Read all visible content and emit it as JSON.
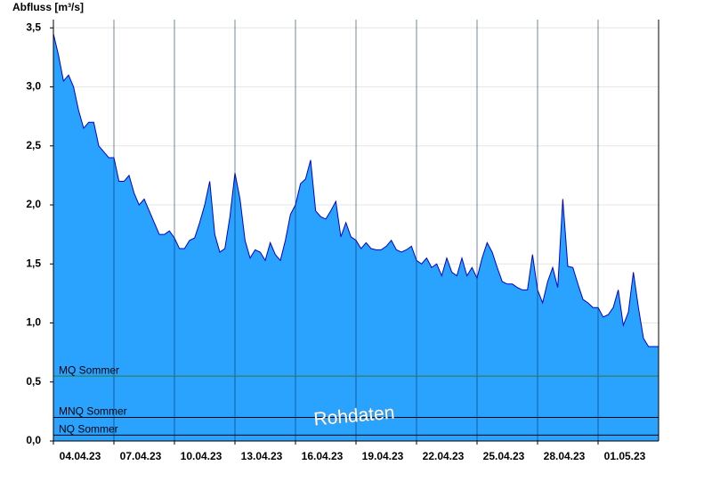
{
  "chart_data": {
    "type": "area",
    "y_label": "Abfluss [m³/s]",
    "annotation": "Rohdaten",
    "color": "#29a3ff",
    "line_color": "#0000cc",
    "grid": true,
    "ylim": [
      0,
      3.57
    ],
    "yticks": [
      {
        "value": 0,
        "label": "0,0"
      },
      {
        "value": 0.5,
        "label": "0,5"
      },
      {
        "value": 1,
        "label": "1,0"
      },
      {
        "value": 1.5,
        "label": "1,5"
      },
      {
        "value": 2,
        "label": "2,0"
      },
      {
        "value": 2.5,
        "label": "2,5"
      },
      {
        "value": 3,
        "label": "3,0"
      },
      {
        "value": 3.5,
        "label": "3,5"
      }
    ],
    "categories": [
      "04.04.23",
      null,
      null,
      null,
      null,
      null,
      null,
      null,
      null,
      null,
      null,
      null,
      "07.04.23",
      null,
      null,
      null,
      null,
      null,
      null,
      null,
      null,
      null,
      null,
      null,
      "10.04.23",
      null,
      null,
      null,
      null,
      null,
      null,
      null,
      null,
      null,
      null,
      null,
      "13.04.23",
      null,
      null,
      null,
      null,
      null,
      null,
      null,
      null,
      null,
      null,
      null,
      "16.04.23",
      null,
      null,
      null,
      null,
      null,
      null,
      null,
      null,
      null,
      null,
      null,
      "19.04.23",
      null,
      null,
      null,
      null,
      null,
      null,
      null,
      null,
      null,
      null,
      null,
      "22.04.23",
      null,
      null,
      null,
      null,
      null,
      null,
      null,
      null,
      null,
      null,
      null,
      "25.04.23",
      null,
      null,
      null,
      null,
      null,
      null,
      null,
      null,
      null,
      null,
      null,
      "28.04.23",
      null,
      null,
      null,
      null,
      null,
      null,
      null,
      null,
      null,
      null,
      null,
      "01.05.23",
      null,
      null,
      null,
      null,
      null,
      null,
      null,
      null,
      null,
      null,
      null,
      null
    ],
    "values": [
      3.45,
      3.27,
      3.05,
      3.1,
      3.0,
      2.8,
      2.65,
      2.7,
      2.7,
      2.5,
      2.45,
      2.4,
      2.4,
      2.2,
      2.2,
      2.25,
      2.1,
      2.0,
      2.05,
      1.95,
      1.85,
      1.75,
      1.75,
      1.78,
      1.72,
      1.63,
      1.63,
      1.7,
      1.72,
      1.85,
      2.0,
      2.2,
      1.75,
      1.6,
      1.63,
      1.9,
      2.27,
      2.05,
      1.7,
      1.55,
      1.62,
      1.6,
      1.53,
      1.68,
      1.58,
      1.53,
      1.7,
      1.92,
      2.0,
      2.18,
      2.22,
      2.38,
      1.95,
      1.9,
      1.88,
      1.95,
      2.03,
      1.73,
      1.85,
      1.73,
      1.7,
      1.63,
      1.68,
      1.63,
      1.62,
      1.62,
      1.65,
      1.7,
      1.62,
      1.6,
      1.62,
      1.65,
      1.53,
      1.5,
      1.55,
      1.47,
      1.5,
      1.4,
      1.55,
      1.43,
      1.4,
      1.55,
      1.4,
      1.47,
      1.38,
      1.55,
      1.68,
      1.6,
      1.47,
      1.35,
      1.33,
      1.33,
      1.3,
      1.28,
      1.28,
      1.58,
      1.28,
      1.17,
      1.35,
      1.47,
      1.3,
      2.05,
      1.48,
      1.47,
      1.33,
      1.2,
      1.17,
      1.13,
      1.13,
      1.05,
      1.07,
      1.13,
      1.28,
      0.98,
      1.09,
      1.43,
      1.13,
      0.87,
      0.8,
      0.8,
      0.8
    ],
    "reference_lines": [
      {
        "label": "MQ Sommer",
        "value": 0.55,
        "color": "#2e7d32"
      },
      {
        "label": "MNQ Sommer",
        "value": 0.2,
        "color": "#000000"
      },
      {
        "label": "NQ Sommer",
        "value": 0.05,
        "color": "#000000"
      }
    ]
  }
}
